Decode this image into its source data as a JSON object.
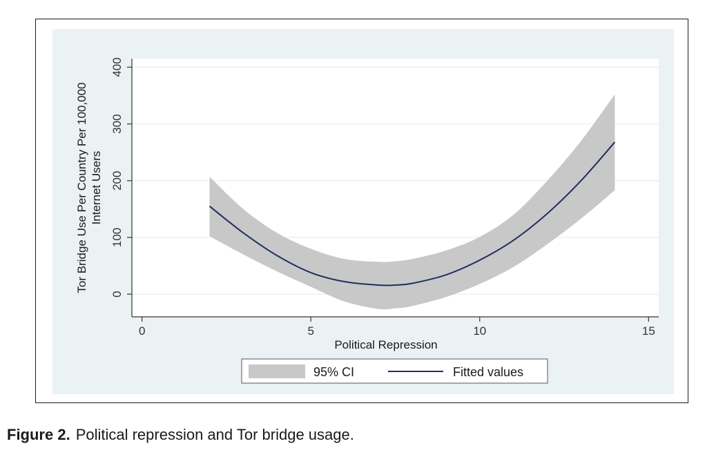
{
  "figure": {
    "label": "Figure 2.",
    "caption": "Political repression and Tor bridge usage."
  },
  "chart_data": {
    "type": "line",
    "xlabel": "Political Repression",
    "ylabel_line1": "Tor Bridge Use Per Country Per 100,000",
    "ylabel_line2": "Internet Users",
    "xlim": [
      -0.3,
      15.3
    ],
    "ylim": [
      -40,
      415
    ],
    "xticks": [
      0,
      5,
      10,
      15
    ],
    "yticks": [
      0,
      100,
      200,
      300,
      400
    ],
    "grid": "horizontal",
    "legend_position": "bottom",
    "colors": {
      "plot_background": "#eaf2f3",
      "ci_band": "#c8c8c8",
      "fitted_line": "#1c2f5e"
    },
    "series": [
      {
        "name": "95% CI",
        "kind": "band",
        "x": [
          2,
          3,
          4,
          5,
          6,
          7,
          7.5,
          8,
          9,
          10,
          11,
          12,
          13,
          14
        ],
        "lower": [
          102,
          70,
          40,
          13,
          -13,
          -26,
          -25,
          -21,
          -5,
          18,
          48,
          88,
          133,
          183
        ],
        "upper": [
          207,
          150,
          108,
          80,
          62,
          57,
          58,
          62,
          77,
          101,
          140,
          200,
          270,
          352
        ]
      },
      {
        "name": "Fitted values",
        "kind": "line",
        "x": [
          2,
          3,
          4,
          5,
          6,
          7,
          7.5,
          8,
          9,
          10,
          11,
          12,
          13,
          14
        ],
        "y": [
          155,
          108,
          68,
          38,
          22,
          16,
          16,
          19,
          34,
          60,
          95,
          142,
          200,
          268
        ]
      }
    ]
  }
}
